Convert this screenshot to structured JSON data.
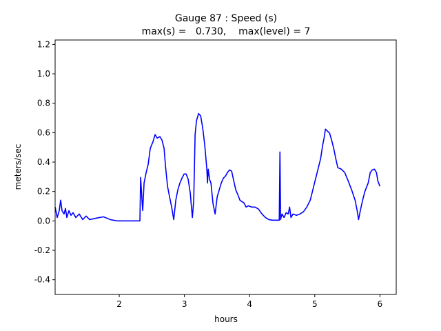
{
  "chart_data": {
    "type": "line",
    "title": "Gauge 87 : Speed (s)",
    "subtitle": "max(s) =   0.730,    max(level) = 7",
    "xlabel": "hours",
    "ylabel": "meters/sec",
    "xlim": [
      1.016,
      6.25
    ],
    "ylim": [
      -0.5,
      1.23
    ],
    "xticks": [
      2,
      3,
      4,
      5,
      6
    ],
    "yticks": [
      -0.4,
      -0.2,
      {
        "value": 0,
        "label": "0.0"
      },
      0.2,
      0.4,
      0.6,
      0.8,
      {
        "value": 1,
        "label": "1.0"
      },
      1.2
    ],
    "grid": false,
    "series": [
      {
        "name": "speed",
        "color": "#0000ff",
        "x": [
          1.016,
          1.048,
          1.079,
          1.101,
          1.122,
          1.153,
          1.175,
          1.196,
          1.228,
          1.259,
          1.291,
          1.333,
          1.386,
          1.439,
          1.492,
          1.545,
          1.651,
          1.757,
          1.862,
          1.968,
          2.18,
          2.317,
          2.328,
          2.349,
          2.36,
          2.381,
          2.413,
          2.444,
          2.476,
          2.519,
          2.55,
          2.582,
          2.624,
          2.656,
          2.688,
          2.709,
          2.741,
          2.772,
          2.804,
          2.836,
          2.868,
          2.899,
          2.931,
          2.963,
          2.995,
          3.026,
          3.058,
          3.09,
          3.122,
          3.143,
          3.164,
          3.185,
          3.217,
          3.249,
          3.28,
          3.312,
          3.344,
          3.354,
          3.365,
          3.386,
          3.407,
          3.439,
          3.471,
          3.503,
          3.534,
          3.566,
          3.598,
          3.63,
          3.661,
          3.693,
          3.725,
          3.757,
          3.788,
          3.82,
          3.852,
          3.884,
          3.915,
          3.947,
          3.979,
          4.032,
          4.085,
          4.138,
          4.19,
          4.243,
          4.296,
          4.349,
          4.455,
          4.466,
          4.476,
          4.497,
          4.529,
          4.561,
          4.593,
          4.614,
          4.635,
          4.667,
          4.72,
          4.772,
          4.825,
          4.878,
          4.931,
          4.984,
          5.037,
          5.09,
          5.122,
          5.143,
          5.164,
          5.196,
          5.228,
          5.259,
          5.291,
          5.323,
          5.354,
          5.407,
          5.46,
          5.513,
          5.566,
          5.619,
          5.651,
          5.672,
          5.704,
          5.735,
          5.767,
          5.82,
          5.852,
          5.884,
          5.915,
          5.947,
          5.968,
          6.0
        ],
        "values": [
          0.094,
          0.023,
          0.07,
          0.141,
          0.07,
          0.047,
          0.085,
          0.023,
          0.07,
          0.038,
          0.056,
          0.023,
          0.047,
          0.009,
          0.033,
          0.009,
          0.019,
          0.028,
          0.009,
          0,
          0,
          0,
          0.296,
          0.141,
          0.07,
          0.258,
          0.329,
          0.385,
          0.493,
          0.54,
          0.587,
          0.563,
          0.573,
          0.549,
          0.493,
          0.376,
          0.235,
          0.164,
          0.094,
          0.009,
          0.141,
          0.211,
          0.258,
          0.291,
          0.319,
          0.319,
          0.282,
          0.188,
          0.023,
          0.141,
          0.587,
          0.681,
          0.73,
          0.714,
          0.634,
          0.516,
          0.352,
          0.258,
          0.352,
          0.282,
          0.258,
          0.117,
          0.047,
          0.164,
          0.211,
          0.258,
          0.291,
          0.305,
          0.329,
          0.347,
          0.338,
          0.272,
          0.211,
          0.178,
          0.141,
          0.131,
          0.122,
          0.094,
          0.103,
          0.094,
          0.094,
          0.08,
          0.047,
          0.023,
          0.009,
          0.005,
          0.005,
          0.469,
          0.009,
          0.047,
          0.023,
          0.056,
          0.047,
          0.094,
          0.023,
          0.047,
          0.038,
          0.047,
          0.061,
          0.094,
          0.141,
          0.235,
          0.329,
          0.423,
          0.516,
          0.563,
          0.624,
          0.61,
          0.596,
          0.549,
          0.493,
          0.423,
          0.362,
          0.352,
          0.329,
          0.272,
          0.211,
          0.141,
          0.07,
          0.009,
          0.08,
          0.141,
          0.197,
          0.258,
          0.329,
          0.347,
          0.352,
          0.329,
          0.272,
          0.235
        ]
      }
    ]
  }
}
